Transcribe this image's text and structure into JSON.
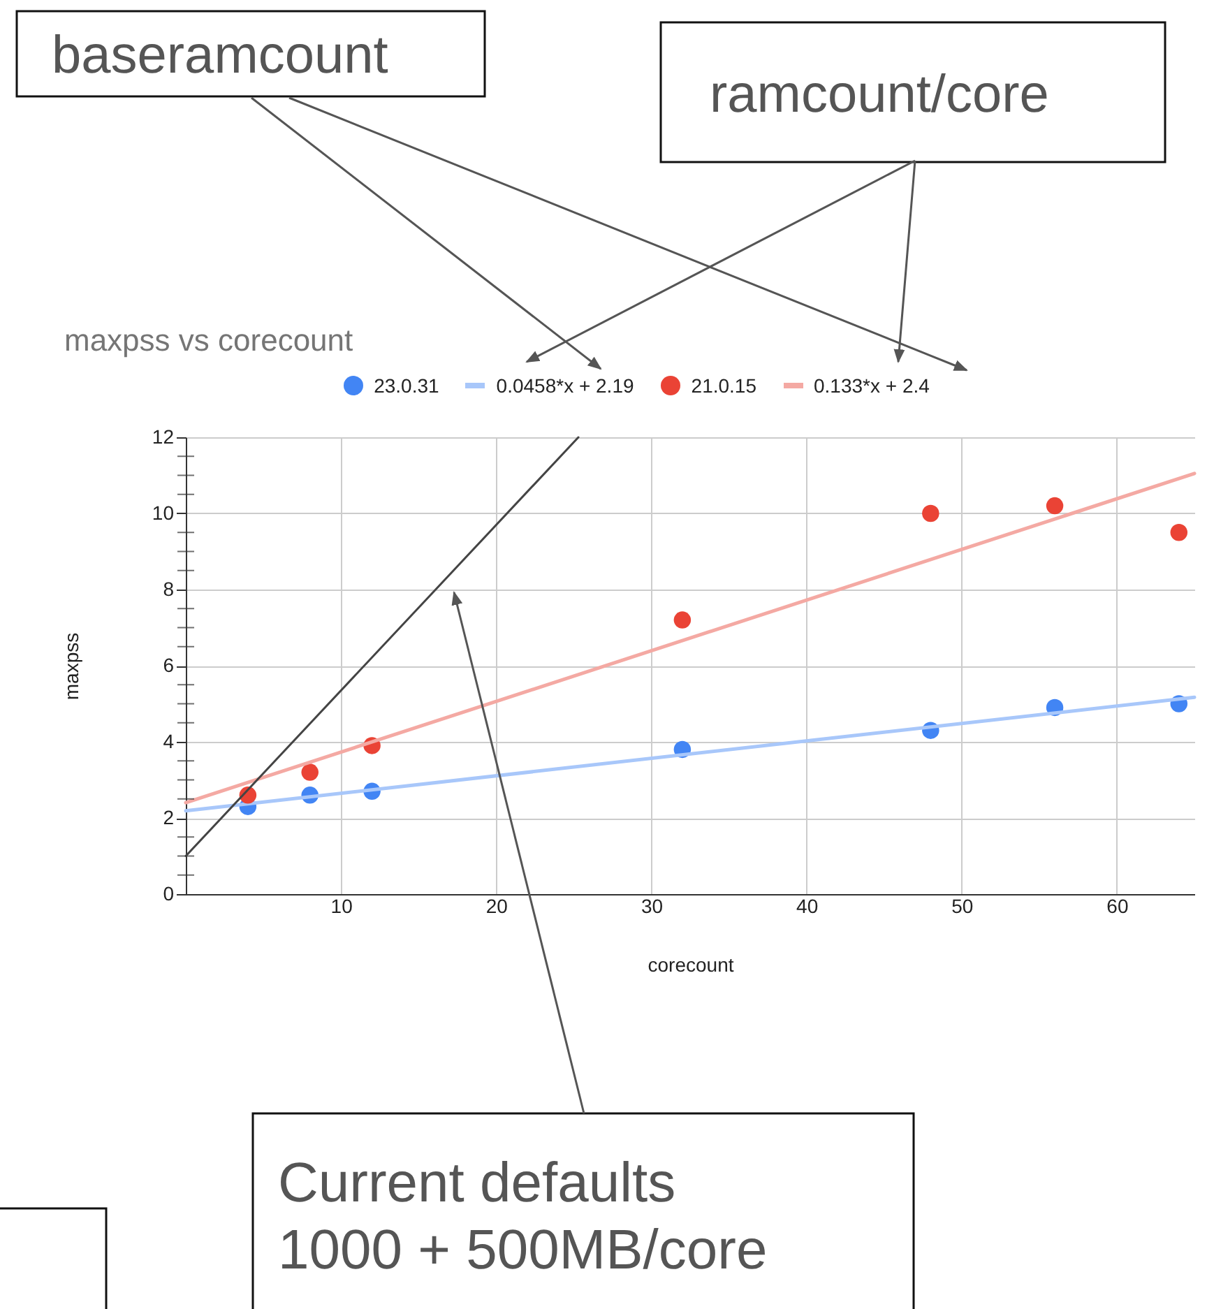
{
  "chart_data": {
    "type": "scatter",
    "title": "maxpss vs corecount",
    "xlabel": "corecount",
    "ylabel": "maxpss",
    "xlim": [
      0,
      65
    ],
    "ylim": [
      0,
      12
    ],
    "xticks": [
      10,
      20,
      30,
      40,
      50,
      60
    ],
    "yticks": [
      0,
      {
        "value": 0.5,
        "label": null
      },
      {
        "value": 1,
        "label": null
      },
      {
        "value": 1.5,
        "label": null
      },
      2,
      {
        "value": 2.5,
        "label": null
      },
      {
        "value": 3,
        "label": null
      },
      {
        "value": 3.5,
        "label": null
      },
      4,
      {
        "value": 4.5,
        "label": null
      },
      {
        "value": 5,
        "label": null
      },
      {
        "value": 5.5,
        "label": null
      },
      6,
      {
        "value": 6.5,
        "label": null
      },
      {
        "value": 7,
        "label": null
      },
      {
        "value": 7.5,
        "label": null
      },
      8,
      {
        "value": 8.5,
        "label": null
      },
      {
        "value": 9,
        "label": null
      },
      {
        "value": 9.5,
        "label": null
      },
      10,
      {
        "value": 10.5,
        "label": null
      },
      {
        "value": 11,
        "label": null
      },
      {
        "value": 11.5,
        "label": null
      },
      12
    ],
    "grid": true,
    "legend": "top",
    "series": [
      {
        "name": "23.0.31",
        "marker": "circle",
        "color": "#4285f4",
        "x": [
          4,
          8,
          12,
          32,
          48,
          56,
          64
        ],
        "values": [
          2.3,
          2.6,
          2.7,
          3.8,
          4.3,
          4.9,
          5.0
        ]
      },
      {
        "name": "0.0458*x + 2.19",
        "type": "line",
        "marker": "none",
        "color": "#a8c7fa",
        "x": [
          0,
          65
        ],
        "values": [
          2.19,
          5.17
        ]
      },
      {
        "name": "21.0.15",
        "marker": "circle",
        "color": "#ea4335",
        "x": [
          4,
          8,
          12,
          32,
          48,
          56,
          64
        ],
        "values": [
          2.6,
          3.2,
          3.9,
          7.2,
          10.0,
          10.2,
          9.5
        ]
      },
      {
        "name": "0.133*x + 2.4",
        "type": "line",
        "marker": "none",
        "color": "#f4a9a3",
        "x": [
          0,
          65
        ],
        "values": [
          2.4,
          11.05
        ]
      },
      {
        "type": "line",
        "marker": "none",
        "color": "#444444",
        "x": [
          0,
          25.3
        ],
        "values": [
          1,
          12
        ]
      }
    ],
    "annotations": [
      "baseramcount",
      "ramcount/core",
      "Current defaults\n1000 + 500MB/core"
    ]
  }
}
